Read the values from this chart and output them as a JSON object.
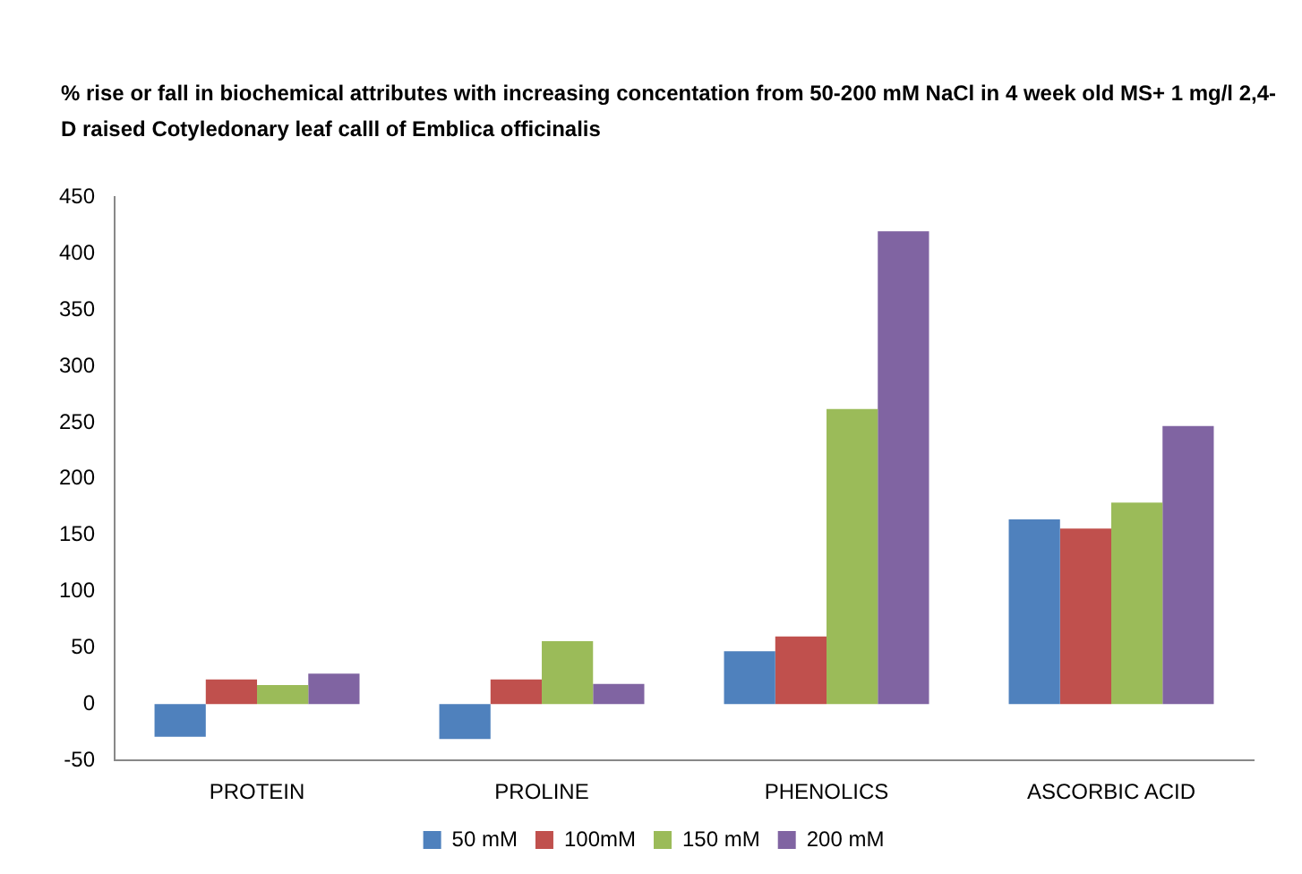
{
  "chart_data": {
    "type": "bar",
    "title": "% rise or fall in biochemical attributes with increasing concentation from 50-200 mM NaCl in 4 week old MS+ 1 mg/l 2,4-D raised  Cotyledonary leaf calll of Emblica officinalis",
    "categories": [
      "PROTEIN",
      "PROLINE",
      "PHENOLICS",
      "ASCORBIC ACID"
    ],
    "series": [
      {
        "name": "50 mM",
        "color": "#4f81bd",
        "values": [
          -29,
          -31,
          47,
          164
        ]
      },
      {
        "name": "100mM",
        "color": "#c0504d",
        "values": [
          22,
          22,
          60,
          156
        ]
      },
      {
        "name": "150 mM",
        "color": "#9bbb59",
        "values": [
          17,
          56,
          262,
          179
        ]
      },
      {
        "name": "200 mM",
        "color": "#8064a2",
        "values": [
          27,
          18,
          420,
          247
        ]
      }
    ],
    "ylim": [
      -50,
      450
    ],
    "yticks": [
      -50,
      0,
      50,
      100,
      150,
      200,
      250,
      300,
      350,
      400,
      450
    ],
    "grid": false,
    "legend": "bottom"
  }
}
